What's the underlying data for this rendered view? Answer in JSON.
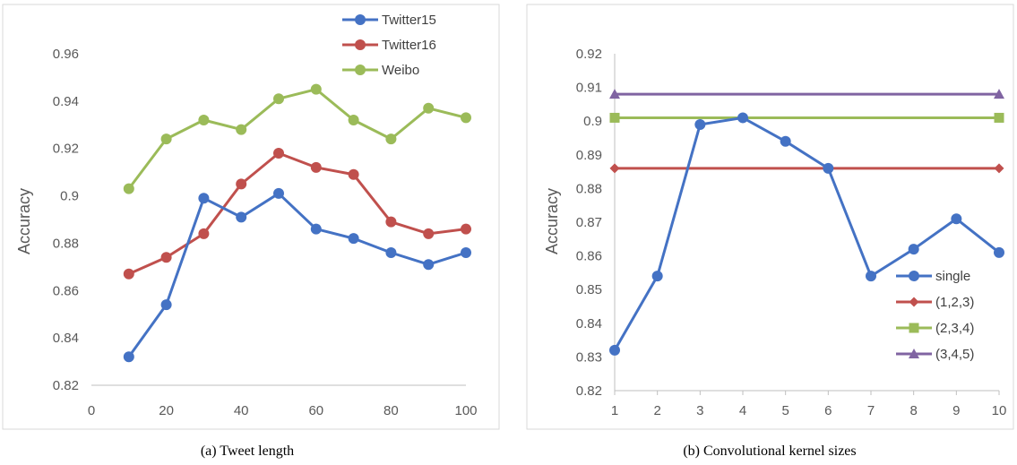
{
  "chart_data": [
    {
      "type": "line",
      "caption": "(a) Tweet length",
      "ylabel": "Accuracy",
      "xlabel": "",
      "x": [
        10,
        20,
        30,
        40,
        50,
        60,
        70,
        80,
        90,
        100
      ],
      "xlim": [
        0,
        100
      ],
      "xticks": [
        0,
        20,
        40,
        60,
        80,
        100
      ],
      "ylim": [
        0.82,
        0.96
      ],
      "yticks": [
        0.82,
        0.84,
        0.86,
        0.88,
        0.9,
        0.92,
        0.94,
        0.96
      ],
      "ytick_labels": [
        "0.82",
        "0.84",
        "0.86",
        "0.88",
        "0.9",
        "0.92",
        "0.94",
        "0.96"
      ],
      "grid": false,
      "legend_position": "top-right",
      "series": [
        {
          "name": "Twitter15",
          "color": "#4472C4",
          "marker": "circle",
          "values": [
            0.832,
            0.854,
            0.899,
            0.891,
            0.901,
            0.886,
            0.882,
            0.876,
            0.871,
            0.876
          ]
        },
        {
          "name": "Twitter16",
          "color": "#C0504D",
          "marker": "circle",
          "values": [
            0.867,
            0.874,
            0.884,
            0.905,
            0.918,
            0.912,
            0.909,
            0.889,
            0.884,
            0.886
          ]
        },
        {
          "name": "Weibo",
          "color": "#9BBB59",
          "marker": "circle",
          "values": [
            0.903,
            0.924,
            0.932,
            0.928,
            0.941,
            0.945,
            0.932,
            0.924,
            0.937,
            0.933
          ]
        }
      ]
    },
    {
      "type": "line",
      "caption": "(b) Convolutional kernel sizes",
      "ylabel": "Accuracy",
      "xlabel": "",
      "categories": [
        "1",
        "2",
        "3",
        "4",
        "5",
        "6",
        "7",
        "8",
        "9",
        "10"
      ],
      "ylim": [
        0.82,
        0.92
      ],
      "yticks": [
        0.82,
        0.83,
        0.84,
        0.85,
        0.86,
        0.87,
        0.88,
        0.89,
        0.9,
        0.91,
        0.92
      ],
      "ytick_labels": [
        "0.82",
        "0.83",
        "0.84",
        "0.85",
        "0.86",
        "0.87",
        "0.88",
        "0.89",
        "0.9",
        "0.91",
        "0.92"
      ],
      "grid": false,
      "legend_position": "bottom-right",
      "series": [
        {
          "name": "single",
          "color": "#4472C4",
          "marker": "circle",
          "values": [
            0.832,
            0.854,
            0.899,
            0.901,
            0.894,
            0.886,
            0.854,
            0.862,
            0.871,
            0.861
          ]
        },
        {
          "name": "(1,2,3)",
          "color": "#C0504D",
          "marker": "diamond",
          "values": [
            0.886,
            0.886,
            0.886,
            0.886,
            0.886,
            0.886,
            0.886,
            0.886,
            0.886,
            0.886
          ]
        },
        {
          "name": "(2,3,4)",
          "color": "#9BBB59",
          "marker": "square",
          "values": [
            0.901,
            0.901,
            0.901,
            0.901,
            0.901,
            0.901,
            0.901,
            0.901,
            0.901,
            0.901
          ]
        },
        {
          "name": "(3,4,5)",
          "color": "#8064A2",
          "marker": "triangle",
          "values": [
            0.908,
            0.908,
            0.908,
            0.908,
            0.908,
            0.908,
            0.908,
            0.908,
            0.908,
            0.908
          ]
        }
      ]
    }
  ]
}
